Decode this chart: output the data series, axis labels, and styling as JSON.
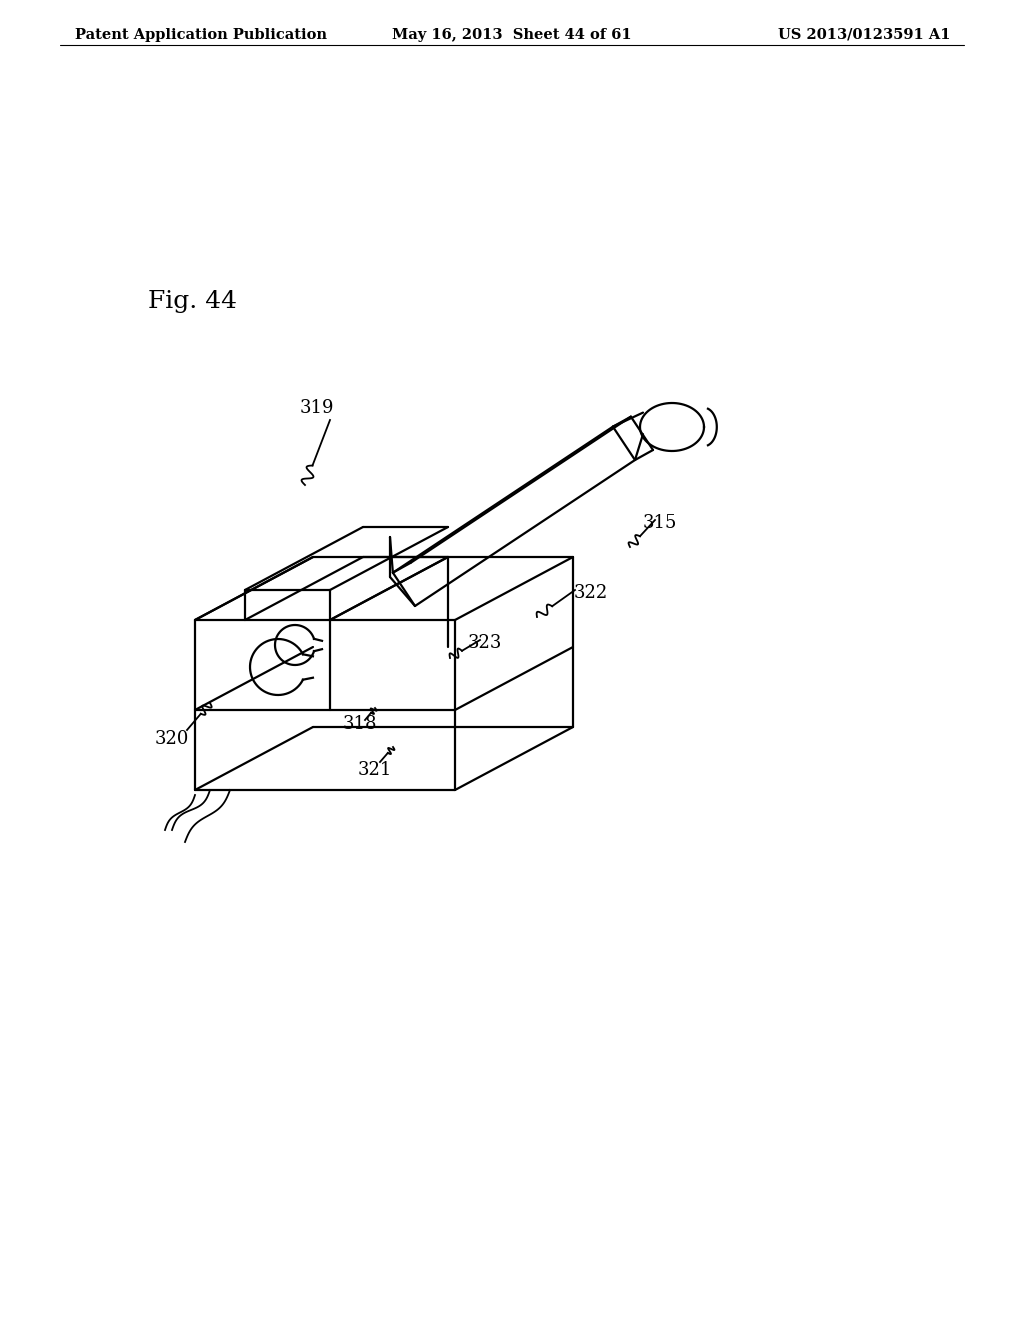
{
  "bg_color": "#ffffff",
  "line_color": "#000000",
  "header_left": "Patent Application Publication",
  "header_mid": "May 16, 2013  Sheet 44 of 61",
  "header_right": "US 2013/0123591 A1",
  "fig_label": "Fig. 44",
  "lw_main": 1.6,
  "lw_leader": 1.3,
  "label_fontsize": 13,
  "fig_label_fontsize": 18,
  "header_fontsize": 10.5
}
